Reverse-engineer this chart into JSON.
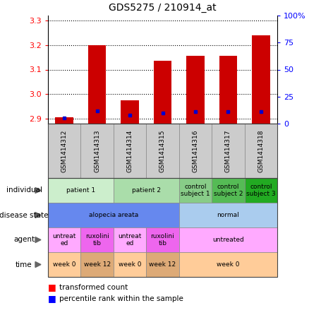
{
  "title": "GDS5275 / 210914_at",
  "samples": [
    "GSM1414312",
    "GSM1414313",
    "GSM1414314",
    "GSM1414315",
    "GSM1414316",
    "GSM1414317",
    "GSM1414318"
  ],
  "transformed_count": [
    2.905,
    3.2,
    2.975,
    3.135,
    3.155,
    3.155,
    3.24
  ],
  "percentile_rank": [
    5,
    12,
    8,
    10,
    11,
    11,
    11
  ],
  "ymin": 2.88,
  "ymax": 3.32,
  "y_ticks": [
    2.9,
    3.0,
    3.1,
    3.2,
    3.3
  ],
  "y2_ticks": [
    0,
    25,
    50,
    75,
    100
  ],
  "bar_color": "#cc0000",
  "dot_color": "#0000cc",
  "individual_groups": [
    {
      "label": "patient 1",
      "cols": [
        0,
        1
      ],
      "color": "#cceecc"
    },
    {
      "label": "patient 2",
      "cols": [
        2,
        3
      ],
      "color": "#aaddaa"
    },
    {
      "label": "control\nsubject 1",
      "cols": [
        4
      ],
      "color": "#88cc88"
    },
    {
      "label": "control\nsubject 2",
      "cols": [
        5
      ],
      "color": "#55bb55"
    },
    {
      "label": "control\nsubject 3",
      "cols": [
        6
      ],
      "color": "#22aa22"
    }
  ],
  "disease_groups": [
    {
      "label": "alopecia areata",
      "cols": [
        0,
        1,
        2,
        3
      ],
      "color": "#6688ee"
    },
    {
      "label": "normal",
      "cols": [
        4,
        5,
        6
      ],
      "color": "#aaccee"
    }
  ],
  "agent_groups": [
    {
      "label": "untreat\ned",
      "cols": [
        0
      ],
      "color": "#ffaaff"
    },
    {
      "label": "ruxolini\ntib",
      "cols": [
        1
      ],
      "color": "#ee66ee"
    },
    {
      "label": "untreat\ned",
      "cols": [
        2
      ],
      "color": "#ffaaff"
    },
    {
      "label": "ruxolini\ntib",
      "cols": [
        3
      ],
      "color": "#ee66ee"
    },
    {
      "label": "untreated",
      "cols": [
        4,
        5,
        6
      ],
      "color": "#ffaaff"
    }
  ],
  "time_groups": [
    {
      "label": "week 0",
      "cols": [
        0
      ],
      "color": "#ffcc99"
    },
    {
      "label": "week 12",
      "cols": [
        1
      ],
      "color": "#ddaa77"
    },
    {
      "label": "week 0",
      "cols": [
        2
      ],
      "color": "#ffcc99"
    },
    {
      "label": "week 12",
      "cols": [
        3
      ],
      "color": "#ddaa77"
    },
    {
      "label": "week 0",
      "cols": [
        4,
        5,
        6
      ],
      "color": "#ffcc99"
    }
  ]
}
